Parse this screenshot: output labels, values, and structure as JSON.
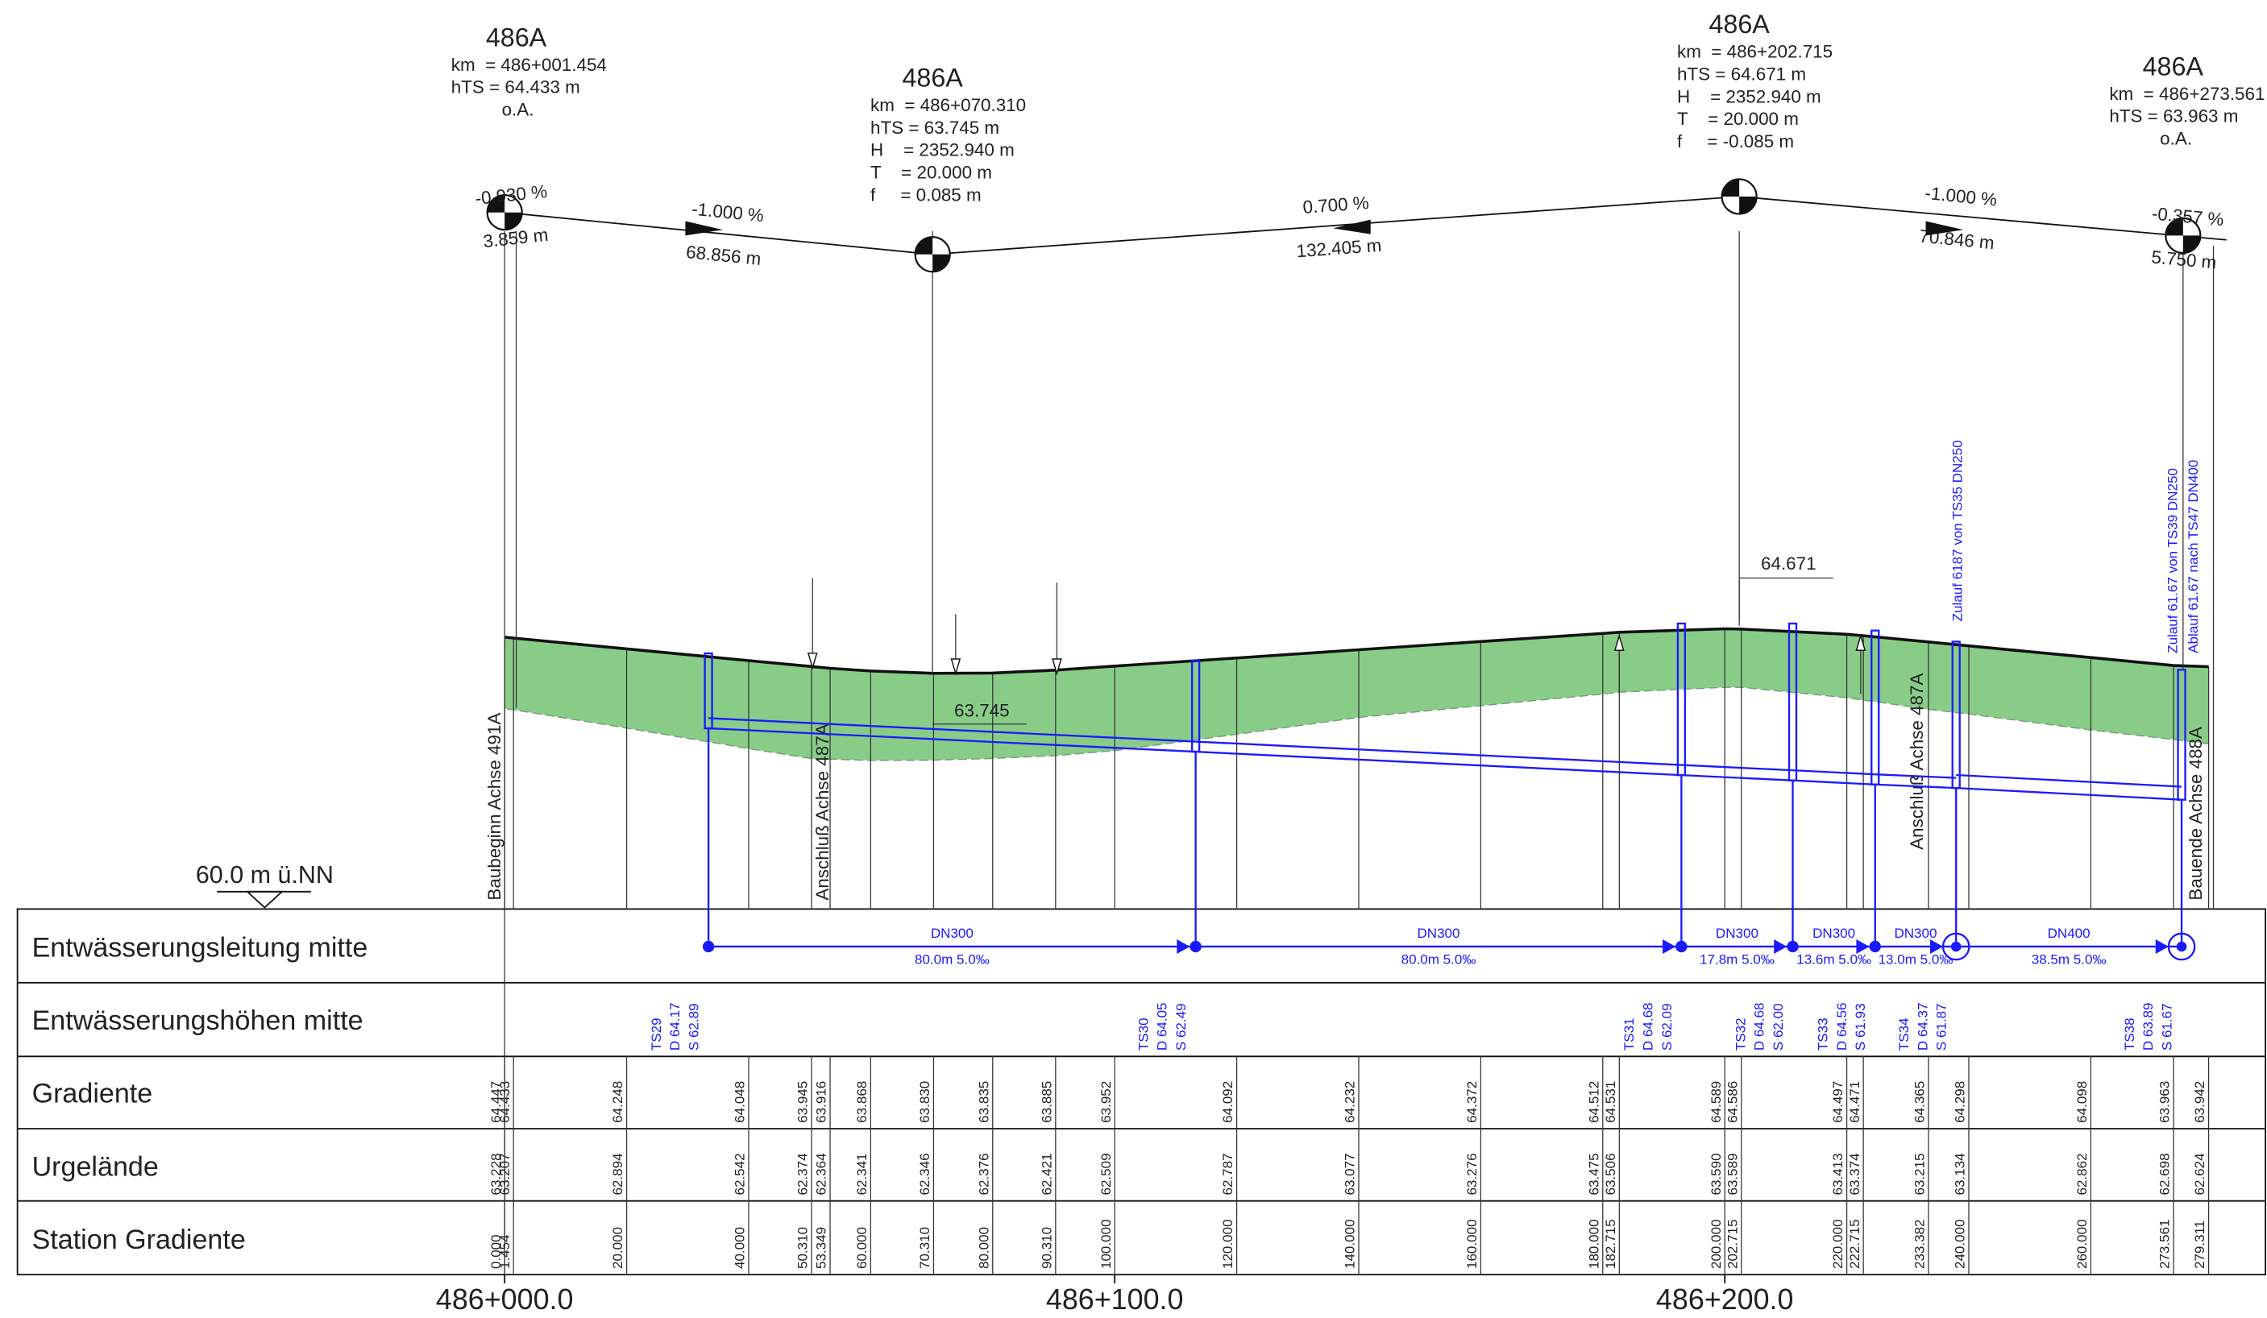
{
  "vertical_curves": [
    {
      "label": "486A",
      "lines": [
        "km  = 486+001.454",
        "hTS = 64.433 m"
      ],
      "note": "o.A."
    },
    {
      "label": "486A",
      "lines": [
        "km  = 486+070.310",
        "hTS = 63.745 m",
        "H    = 2352.940 m",
        "T    = 20.000 m",
        "f     = 0.085 m"
      ]
    },
    {
      "label": "486A",
      "lines": [
        "km  = 486+202.715",
        "hTS = 64.671 m",
        "H    = 2352.940 m",
        "T    = 20.000 m",
        "f     = -0.085 m"
      ]
    },
    {
      "label": "486A",
      "lines": [
        "km  = 486+273.561",
        "hTS = 63.963 m"
      ],
      "note": "o.A."
    }
  ],
  "grades": [
    {
      "percent": "-0.930 %",
      "length": "3.859 m"
    },
    {
      "percent": "-1.000 %",
      "length": "68.856 m"
    },
    {
      "percent": "0.700 %",
      "length": "132.405 m"
    },
    {
      "percent": "-1.000 %",
      "length": "70.846 m"
    },
    {
      "percent": "-0.357 %",
      "length": "5.750 m"
    }
  ],
  "elevation_marks": [
    "63.745",
    "64.671"
  ],
  "datum": "60.0 m ü.NN",
  "axis_notes": [
    "Baubeginn Achse 491A",
    "Anschluß Achse 487A",
    "Anschluß Achse 487A",
    "Bauende Achse 488A"
  ],
  "inflow_notes": [
    "Zulauf 6187 von TS35 DN250",
    "Zulauf 61.67 von TS39 DN250",
    "Ablauf 61.67 nach TS47 DN400"
  ],
  "row_labels": [
    "Entwässerungsleitung mitte",
    "Entwässerungshöhen mitte",
    "Gradiente",
    "Urgelände",
    "Station Gradiente"
  ],
  "stations": [
    {
      "station": "0.000",
      "gradient": "64.447",
      "ground": "63.228"
    },
    {
      "station": "1.454",
      "gradient": "64.433",
      "ground": "63.207"
    },
    {
      "station": "20.000",
      "gradient": "64.248",
      "ground": "62.894"
    },
    {
      "station": "40.000",
      "gradient": "64.048",
      "ground": "62.542"
    },
    {
      "station": "50.310",
      "gradient": "63.945",
      "ground": "62.374"
    },
    {
      "station": "53.349",
      "gradient": "63.916",
      "ground": "62.364"
    },
    {
      "station": "60.000",
      "gradient": "63.868",
      "ground": "62.341"
    },
    {
      "station": "70.310",
      "gradient": "63.830",
      "ground": "62.346"
    },
    {
      "station": "80.000",
      "gradient": "63.835",
      "ground": "62.376"
    },
    {
      "station": "90.310",
      "gradient": "63.885",
      "ground": "62.421"
    },
    {
      "station": "100.000",
      "gradient": "63.952",
      "ground": "62.509"
    },
    {
      "station": "120.000",
      "gradient": "64.092",
      "ground": "62.787"
    },
    {
      "station": "140.000",
      "gradient": "64.232",
      "ground": "63.077"
    },
    {
      "station": "160.000",
      "gradient": "64.372",
      "ground": "63.276"
    },
    {
      "station": "180.000",
      "gradient": "64.512",
      "ground": "63.475"
    },
    {
      "station": "182.715",
      "gradient": "64.531",
      "ground": "63.506"
    },
    {
      "station": "200.000",
      "gradient": "64.589",
      "ground": "63.590"
    },
    {
      "station": "202.715",
      "gradient": "64.586",
      "ground": "63.589"
    },
    {
      "station": "220.000",
      "gradient": "64.497",
      "ground": "63.413"
    },
    {
      "station": "222.715",
      "gradient": "64.471",
      "ground": "63.374"
    },
    {
      "station": "233.382",
      "gradient": "64.365",
      "ground": "63.215"
    },
    {
      "station": "240.000",
      "gradient": "64.298",
      "ground": "63.134"
    },
    {
      "station": "260.000",
      "gradient": "64.098",
      "ground": "62.862"
    },
    {
      "station": "273.561",
      "gradient": "63.963",
      "ground": "62.698"
    },
    {
      "station": "279.311",
      "gradient": "63.942",
      "ground": "62.624"
    }
  ],
  "manholes": [
    {
      "name": "TS29",
      "d": "D 64.17",
      "s": "S 62.89"
    },
    {
      "name": "TS30",
      "d": "D 64.05",
      "s": "S 62.49"
    },
    {
      "name": "TS31",
      "d": "D 64.68",
      "s": "S 62.09"
    },
    {
      "name": "TS32",
      "d": "D 64.68",
      "s": "S 62.00"
    },
    {
      "name": "TS33",
      "d": "D 64.56",
      "s": "S 61.93"
    },
    {
      "name": "TS34",
      "d": "D 64.37",
      "s": "S 61.87"
    },
    {
      "name": "TS38",
      "d": "D 63.89",
      "s": "S 61.67"
    }
  ],
  "pipes": [
    {
      "dn": "DN300",
      "spec": "80.0m 5.0‰"
    },
    {
      "dn": "DN300",
      "spec": "80.0m 5.0‰"
    },
    {
      "dn": "DN300",
      "spec": "17.8m 5.0‰"
    },
    {
      "dn": "DN300",
      "spec": "13.6m 5.0‰"
    },
    {
      "dn": "DN300",
      "spec": "13.0m 5.0‰"
    },
    {
      "dn": "DN400",
      "spec": "38.5m 5.0‰"
    }
  ],
  "chainage": [
    "486+000.0",
    "486+100.0",
    "486+200.0"
  ]
}
